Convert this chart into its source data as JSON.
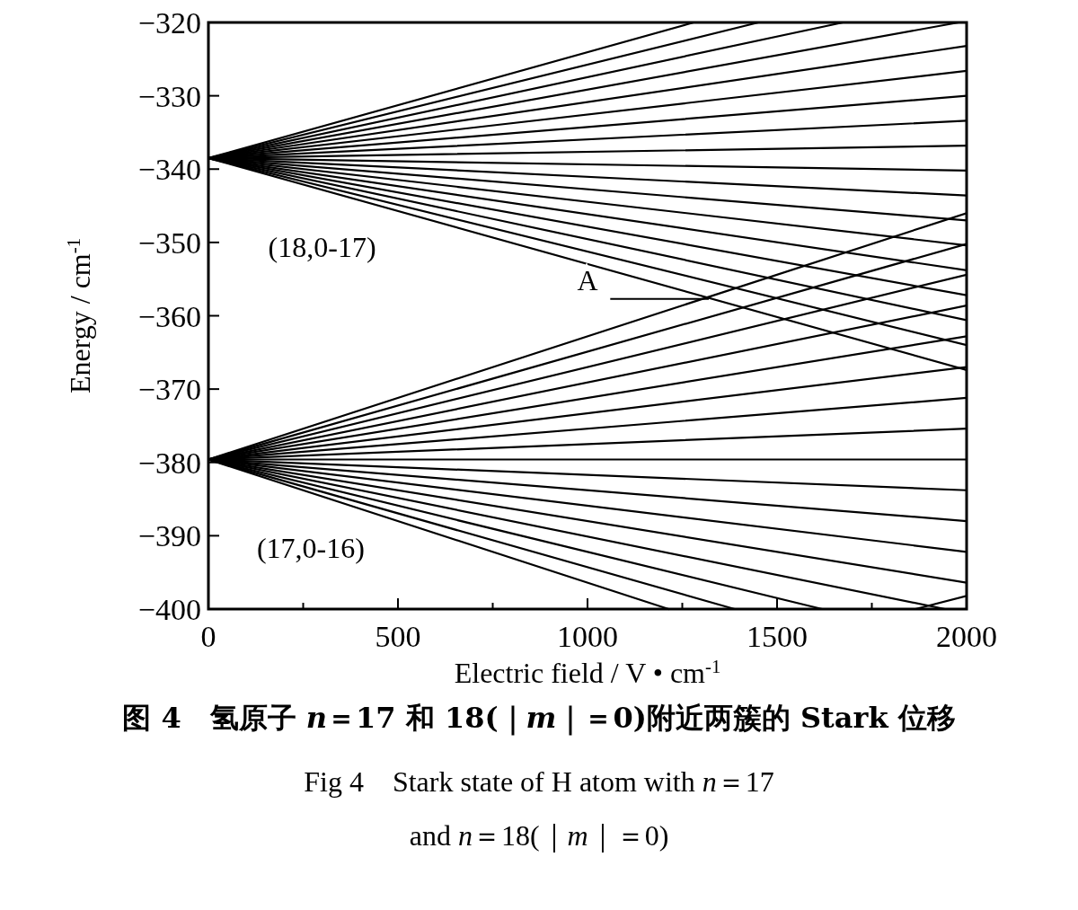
{
  "chart_data": {
    "type": "line",
    "title": "图 4　氢原子 *n*＝17 和 18(｜*m*｜＝0)附近两簇的 Stark 位移",
    "subtitle": "Fig 4　Stark state of H atom with *n*＝17 and *n*＝18(｜*m*｜＝0)",
    "xlabel": "Electric field / V • cm$^{-1}$",
    "ylabel": "Energy / cm$^{-1}$",
    "xlim": [
      0,
      2000
    ],
    "ylim": [
      -400,
      -320
    ],
    "xticks": [
      0,
      {
        "value": 250,
        "label": null
      },
      500,
      {
        "value": 750,
        "label": null
      },
      1000,
      {
        "value": 1250,
        "label": null
      },
      1500,
      {
        "value": 1750,
        "label": null
      },
      2000
    ],
    "yticks": [
      -400,
      -390,
      -380,
      -370,
      -360,
      -350,
      -340,
      -330,
      -320
    ],
    "marker": "none",
    "line_style": "solid",
    "grid": false,
    "annotations": [
      "(18,0-17)",
      "(17,0-16)",
      "A"
    ],
    "series": [
      {
        "color": "#000000",
        "x": [
          0,
          1280
        ],
        "values": [
          -338.5,
          -320
        ]
      },
      {
        "color": "#000000",
        "x": [
          0,
          1451
        ],
        "values": [
          -338.5,
          -320
        ]
      },
      {
        "color": "#000000",
        "x": [
          0,
          1674
        ],
        "values": [
          -338.5,
          -320
        ]
      },
      {
        "color": "#000000",
        "x": [
          0,
          1979
        ],
        "values": [
          -338.5,
          -320
        ]
      },
      {
        "color": "#000000",
        "x": [
          0,
          2000
        ],
        "values": [
          -338.5,
          -323.2
        ]
      },
      {
        "color": "#000000",
        "x": [
          0,
          2000
        ],
        "values": [
          -338.5,
          -326.6
        ]
      },
      {
        "color": "#000000",
        "x": [
          0,
          2000
        ],
        "values": [
          -338.5,
          -330.0
        ]
      },
      {
        "color": "#000000",
        "x": [
          0,
          2000
        ],
        "values": [
          -338.5,
          -333.4
        ]
      },
      {
        "color": "#000000",
        "x": [
          0,
          2000
        ],
        "values": [
          -338.5,
          -336.8
        ]
      },
      {
        "color": "#000000",
        "x": [
          0,
          2000
        ],
        "values": [
          -338.5,
          -340.2
        ]
      },
      {
        "color": "#000000",
        "x": [
          0,
          2000
        ],
        "values": [
          -338.5,
          -343.6
        ]
      },
      {
        "color": "#000000",
        "x": [
          0,
          2000
        ],
        "values": [
          -338.5,
          -347.0
        ]
      },
      {
        "color": "#000000",
        "x": [
          0,
          2000
        ],
        "values": [
          -338.5,
          -350.4
        ]
      },
      {
        "color": "#000000",
        "x": [
          0,
          2000
        ],
        "values": [
          -338.5,
          -353.8
        ]
      },
      {
        "color": "#000000",
        "x": [
          0,
          2000
        ],
        "values": [
          -338.5,
          -357.2
        ]
      },
      {
        "color": "#000000",
        "x": [
          0,
          2000
        ],
        "values": [
          -338.5,
          -360.6
        ]
      },
      {
        "color": "#000000",
        "x": [
          0,
          2000
        ],
        "values": [
          -338.5,
          -364.0
        ]
      },
      {
        "color": "#000000",
        "x": [
          0,
          2000
        ],
        "values": [
          -338.5,
          -367.4
        ]
      },
      {
        "color": "#000000",
        "x": [
          0,
          2000
        ],
        "values": [
          -379.6,
          -346.0
        ]
      },
      {
        "color": "#000000",
        "x": [
          0,
          2000
        ],
        "values": [
          -379.6,
          -350.2
        ]
      },
      {
        "color": "#000000",
        "x": [
          0,
          2000
        ],
        "values": [
          -379.6,
          -354.4
        ]
      },
      {
        "color": "#000000",
        "x": [
          0,
          2000
        ],
        "values": [
          -379.6,
          -358.6
        ]
      },
      {
        "color": "#000000",
        "x": [
          0,
          2000
        ],
        "values": [
          -379.6,
          -362.8
        ]
      },
      {
        "color": "#000000",
        "x": [
          0,
          2000
        ],
        "values": [
          -379.6,
          -367.0
        ]
      },
      {
        "color": "#000000",
        "x": [
          0,
          2000
        ],
        "values": [
          -379.6,
          -371.2
        ]
      },
      {
        "color": "#000000",
        "x": [
          0,
          2000
        ],
        "values": [
          -379.6,
          -375.4
        ]
      },
      {
        "color": "#000000",
        "x": [
          0,
          2000
        ],
        "values": [
          -379.6,
          -379.6
        ]
      },
      {
        "color": "#000000",
        "x": [
          0,
          2000
        ],
        "values": [
          -379.6,
          -383.8
        ]
      },
      {
        "color": "#000000",
        "x": [
          0,
          2000
        ],
        "values": [
          -379.6,
          -388.0
        ]
      },
      {
        "color": "#000000",
        "x": [
          0,
          2000
        ],
        "values": [
          -379.6,
          -392.2
        ]
      },
      {
        "color": "#000000",
        "x": [
          0,
          2000
        ],
        "values": [
          -379.6,
          -396.4
        ]
      },
      {
        "color": "#000000",
        "x": [
          0,
          1943
        ],
        "values": [
          -379.6,
          -400
        ]
      },
      {
        "color": "#000000",
        "x": [
          0,
          1619
        ],
        "values": [
          -379.6,
          -400
        ]
      },
      {
        "color": "#000000",
        "x": [
          0,
          1388
        ],
        "values": [
          -379.6,
          -400
        ]
      },
      {
        "color": "#000000",
        "x": [
          0,
          1214
        ],
        "values": [
          -379.6,
          -400
        ]
      },
      {
        "color": "#000000",
        "x": [
          1865,
          2000
        ],
        "values": [
          -400,
          -398.2
        ]
      }
    ]
  }
}
